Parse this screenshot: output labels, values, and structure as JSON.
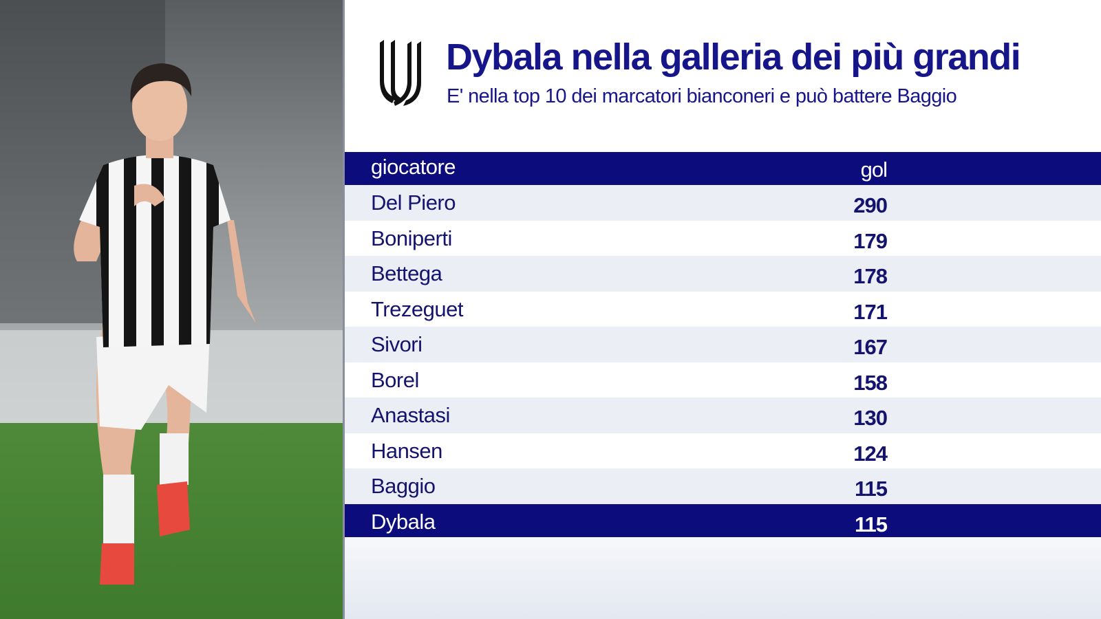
{
  "header": {
    "title": "Dybala nella galleria dei più grandi",
    "subtitle": "E' nella top 10 dei marcatori bianconeri e può battere Baggio"
  },
  "table": {
    "columns": [
      "giocatore",
      "gol"
    ],
    "rows": [
      [
        "Del Piero",
        290
      ],
      [
        "Boniperti",
        179
      ],
      [
        "Bettega",
        178
      ],
      [
        "Trezeguet",
        171
      ],
      [
        "Sivori",
        167
      ],
      [
        "Borel",
        158
      ],
      [
        "Anastasi",
        130
      ],
      [
        "Hansen",
        124
      ],
      [
        "Baggio",
        115
      ],
      [
        "Dybala",
        115
      ]
    ]
  }
}
